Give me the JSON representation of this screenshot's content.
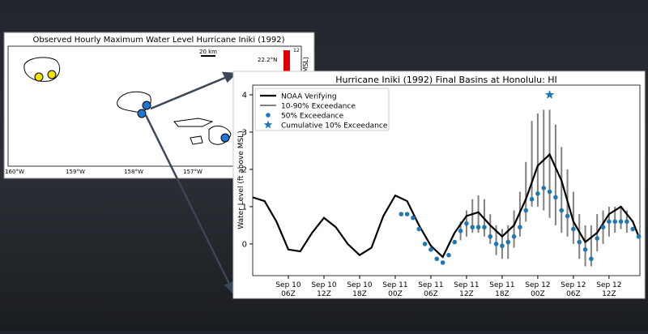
{
  "map": {
    "title": "Observed Hourly Maximum Water Level Hurricane Iniki (1992)",
    "lon_labels": [
      "160°W",
      "159°W",
      "158°W",
      "157°W"
    ],
    "lat_label": "22.2°N",
    "scale_label": "20 km",
    "colorbar_tick": "12",
    "colorbar_label": "(ft above MSL)"
  },
  "chart_data": {
    "type": "line",
    "title": "Hurricane Iniki (1992) Final Basins at  Honolulu: HI",
    "y_label": "Water Level (ft above MSL)",
    "xlim": [
      0,
      65.2
    ],
    "ylim": [
      -0.85,
      4.26
    ],
    "yticks": [
      0,
      1,
      2,
      3,
      4
    ],
    "xticks": [
      {
        "value": 6,
        "label": "Sep 10\n06Z"
      },
      {
        "value": 12,
        "label": "Sep 10\n12Z"
      },
      {
        "value": 18,
        "label": "Sep 10\n18Z"
      },
      {
        "value": 24,
        "label": "Sep 11\n00Z"
      },
      {
        "value": 30,
        "label": "Sep 11\n06Z"
      },
      {
        "value": 36,
        "label": "Sep 11\n12Z"
      },
      {
        "value": 42,
        "label": "Sep 11\n18Z"
      },
      {
        "value": 48,
        "label": "Sep 12\n00Z"
      },
      {
        "value": 54,
        "label": "Sep 12\n06Z"
      },
      {
        "value": 60,
        "label": "Sep 12\n12Z"
      }
    ],
    "legend": "upper left",
    "series": [
      {
        "name": "NOAA Verifying",
        "style": "line",
        "color": "#000000",
        "x": [
          0,
          2,
          4,
          6,
          8,
          10,
          12,
          14,
          16,
          18,
          20,
          22,
          24,
          26,
          28,
          30,
          32,
          34,
          36,
          38,
          40,
          42,
          44,
          46,
          48,
          50,
          52,
          54,
          56,
          58,
          60,
          62,
          64,
          65
        ],
        "values": [
          1.25,
          1.15,
          0.6,
          -0.15,
          -0.2,
          0.3,
          0.7,
          0.45,
          0.0,
          -0.3,
          -0.1,
          0.75,
          1.3,
          1.15,
          0.5,
          -0.05,
          -0.35,
          0.3,
          0.75,
          0.85,
          0.5,
          0.2,
          0.5,
          1.2,
          2.1,
          2.4,
          1.7,
          0.6,
          0.05,
          0.3,
          0.8,
          1.0,
          0.6,
          0.2
        ]
      },
      {
        "name": "10-90% Exceedance",
        "style": "errorbar",
        "color": "#808080",
        "x": [
          35,
          36,
          37,
          38,
          39,
          40,
          41,
          42,
          43,
          44,
          45,
          46,
          47,
          48,
          49,
          50,
          51,
          52,
          53,
          54,
          55,
          56,
          57,
          58,
          59,
          60,
          61,
          62,
          63
        ],
        "low": [
          0.1,
          0.2,
          0.3,
          0.3,
          0.2,
          0.0,
          -0.3,
          -0.4,
          -0.4,
          -0.1,
          0.2,
          0.6,
          1.0,
          1.0,
          0.9,
          0.7,
          0.5,
          0.3,
          0.2,
          0.0,
          -0.4,
          -0.6,
          -0.6,
          -0.2,
          0.0,
          0.2,
          0.3,
          0.4,
          0.3
        ],
        "high": [
          0.6,
          0.9,
          1.2,
          1.3,
          1.2,
          0.8,
          0.5,
          0.4,
          0.5,
          0.9,
          1.4,
          2.2,
          3.3,
          3.5,
          3.6,
          3.6,
          3.2,
          2.6,
          2.0,
          1.4,
          0.8,
          0.5,
          0.5,
          0.8,
          0.9,
          1.0,
          1.0,
          1.0,
          0.9
        ]
      },
      {
        "name": "50% Exceedance",
        "style": "dots",
        "color": "#1f77b4",
        "x": [
          25,
          26,
          27,
          28,
          29,
          30,
          31,
          32,
          33,
          34,
          35,
          36,
          37,
          38,
          39,
          40,
          41,
          42,
          43,
          44,
          45,
          46,
          47,
          48,
          49,
          50,
          51,
          52,
          53,
          54,
          55,
          56,
          57,
          58,
          59,
          60,
          61,
          62,
          63,
          64,
          65
        ],
        "values": [
          0.8,
          0.8,
          0.7,
          0.4,
          0.0,
          -0.15,
          -0.4,
          -0.5,
          -0.3,
          0.05,
          0.35,
          0.55,
          0.45,
          0.45,
          0.45,
          0.2,
          0.0,
          -0.05,
          0.05,
          0.2,
          0.45,
          0.9,
          1.2,
          1.35,
          1.5,
          1.4,
          1.25,
          0.9,
          0.75,
          0.4,
          0.05,
          -0.15,
          -0.4,
          0.15,
          0.45,
          0.6,
          0.6,
          0.6,
          0.6,
          0.4,
          0.2
        ]
      },
      {
        "name": "Cumulative 10% Exceedance",
        "style": "star",
        "color": "#1f77b4",
        "x": [
          50
        ],
        "values": [
          4.0
        ]
      }
    ]
  }
}
